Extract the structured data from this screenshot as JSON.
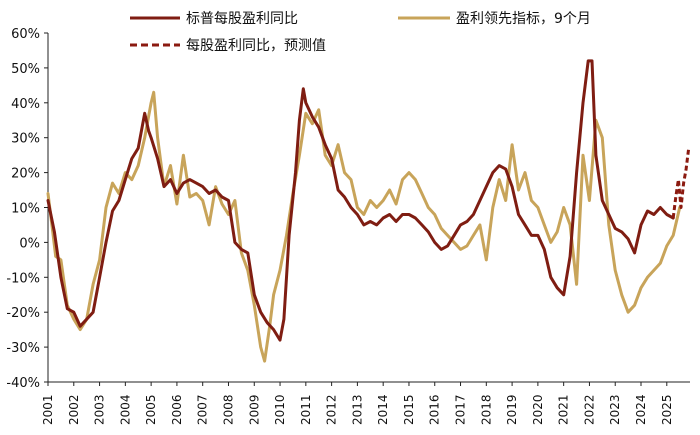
{
  "chart_data": {
    "type": "line",
    "title": "",
    "xlabel": "",
    "ylabel": "",
    "ylim": [
      -40,
      60
    ],
    "ytick_values": [
      -40,
      -30,
      -20,
      -10,
      0,
      10,
      20,
      30,
      40,
      50,
      60
    ],
    "ytick_labels": [
      "-40%",
      "-30%",
      "-20%",
      "-10%",
      "0%",
      "10%",
      "20%",
      "30%",
      "40%",
      "50%",
      "60%"
    ],
    "xlim": [
      2001,
      2025.9
    ],
    "xtick_labels": [
      "2001",
      "2002",
      "2003",
      "2004",
      "2005",
      "2006",
      "2007",
      "2008",
      "2009",
      "2010",
      "2011",
      "2012",
      "2013",
      "2014",
      "2015",
      "2016",
      "2017",
      "2018",
      "2019",
      "2020",
      "2021",
      "2022",
      "2023",
      "2024",
      "2025"
    ],
    "grid": false,
    "legend_position": "top",
    "series": [
      {
        "name": "标普每股盈利同比",
        "color": "#7f1d12",
        "style": "solid",
        "points": [
          [
            2001.0,
            12
          ],
          [
            2001.25,
            3
          ],
          [
            2001.5,
            -10
          ],
          [
            2001.75,
            -19
          ],
          [
            2002.0,
            -20
          ],
          [
            2002.25,
            -24
          ],
          [
            2002.5,
            -22
          ],
          [
            2002.75,
            -20
          ],
          [
            2003.0,
            -10
          ],
          [
            2003.25,
            0
          ],
          [
            2003.5,
            9
          ],
          [
            2003.75,
            12
          ],
          [
            2004.0,
            18
          ],
          [
            2004.25,
            24
          ],
          [
            2004.5,
            27
          ],
          [
            2004.75,
            37
          ],
          [
            2004.9,
            32
          ],
          [
            2005.0,
            30
          ],
          [
            2005.25,
            24
          ],
          [
            2005.5,
            16
          ],
          [
            2005.75,
            18
          ],
          [
            2006.0,
            14
          ],
          [
            2006.25,
            17
          ],
          [
            2006.5,
            18
          ],
          [
            2006.75,
            17
          ],
          [
            2007.0,
            16
          ],
          [
            2007.25,
            14
          ],
          [
            2007.5,
            15
          ],
          [
            2007.75,
            13
          ],
          [
            2008.0,
            12
          ],
          [
            2008.25,
            0
          ],
          [
            2008.5,
            -2
          ],
          [
            2008.75,
            -3
          ],
          [
            2009.0,
            -15
          ],
          [
            2009.25,
            -20
          ],
          [
            2009.5,
            -23
          ],
          [
            2009.75,
            -25
          ],
          [
            2010.0,
            -28
          ],
          [
            2010.15,
            -22
          ],
          [
            2010.35,
            2
          ],
          [
            2010.6,
            20
          ],
          [
            2010.75,
            35
          ],
          [
            2010.9,
            44
          ],
          [
            2011.0,
            40
          ],
          [
            2011.25,
            36
          ],
          [
            2011.5,
            33
          ],
          [
            2011.75,
            28
          ],
          [
            2012.0,
            24
          ],
          [
            2012.25,
            15
          ],
          [
            2012.5,
            13
          ],
          [
            2012.75,
            10
          ],
          [
            2013.0,
            8
          ],
          [
            2013.25,
            5
          ],
          [
            2013.5,
            6
          ],
          [
            2013.75,
            5
          ],
          [
            2014.0,
            7
          ],
          [
            2014.25,
            8
          ],
          [
            2014.5,
            6
          ],
          [
            2014.75,
            8
          ],
          [
            2015.0,
            8
          ],
          [
            2015.25,
            7
          ],
          [
            2015.5,
            5
          ],
          [
            2015.75,
            3
          ],
          [
            2016.0,
            0
          ],
          [
            2016.25,
            -2
          ],
          [
            2016.5,
            -1
          ],
          [
            2016.75,
            2
          ],
          [
            2017.0,
            5
          ],
          [
            2017.25,
            6
          ],
          [
            2017.5,
            8
          ],
          [
            2017.75,
            12
          ],
          [
            2018.0,
            16
          ],
          [
            2018.25,
            20
          ],
          [
            2018.5,
            22
          ],
          [
            2018.75,
            21
          ],
          [
            2019.0,
            16
          ],
          [
            2019.25,
            8
          ],
          [
            2019.5,
            5
          ],
          [
            2019.75,
            2
          ],
          [
            2020.0,
            2
          ],
          [
            2020.25,
            -2
          ],
          [
            2020.5,
            -10
          ],
          [
            2020.75,
            -13
          ],
          [
            2021.0,
            -15
          ],
          [
            2021.25,
            -4
          ],
          [
            2021.5,
            20
          ],
          [
            2021.75,
            40
          ],
          [
            2021.95,
            52
          ],
          [
            2022.1,
            52
          ],
          [
            2022.25,
            25
          ],
          [
            2022.5,
            12
          ],
          [
            2022.75,
            8
          ],
          [
            2023.0,
            4
          ],
          [
            2023.25,
            3
          ],
          [
            2023.5,
            1
          ],
          [
            2023.75,
            -3
          ],
          [
            2024.0,
            5
          ],
          [
            2024.25,
            9
          ],
          [
            2024.5,
            8
          ],
          [
            2024.75,
            10
          ],
          [
            2025.0,
            8
          ],
          [
            2025.25,
            7
          ]
        ]
      },
      {
        "name": "盈利领先指标，9个月",
        "color": "#c8a45a",
        "style": "solid",
        "points": [
          [
            2001.0,
            14
          ],
          [
            2001.15,
            5
          ],
          [
            2001.3,
            -4
          ],
          [
            2001.5,
            -5
          ],
          [
            2001.75,
            -18
          ],
          [
            2002.0,
            -22
          ],
          [
            2002.25,
            -25
          ],
          [
            2002.5,
            -22
          ],
          [
            2002.75,
            -12
          ],
          [
            2003.0,
            -5
          ],
          [
            2003.25,
            10
          ],
          [
            2003.5,
            17
          ],
          [
            2003.75,
            14
          ],
          [
            2004.0,
            20
          ],
          [
            2004.25,
            18
          ],
          [
            2004.5,
            22
          ],
          [
            2004.75,
            30
          ],
          [
            2005.0,
            40
          ],
          [
            2005.1,
            43
          ],
          [
            2005.25,
            30
          ],
          [
            2005.5,
            16
          ],
          [
            2005.75,
            22
          ],
          [
            2006.0,
            11
          ],
          [
            2006.25,
            25
          ],
          [
            2006.5,
            13
          ],
          [
            2006.75,
            14
          ],
          [
            2007.0,
            12
          ],
          [
            2007.25,
            5
          ],
          [
            2007.5,
            16
          ],
          [
            2007.75,
            11
          ],
          [
            2008.0,
            8
          ],
          [
            2008.25,
            12
          ],
          [
            2008.5,
            -3
          ],
          [
            2008.75,
            -8
          ],
          [
            2009.0,
            -18
          ],
          [
            2009.25,
            -30
          ],
          [
            2009.4,
            -34
          ],
          [
            2009.6,
            -24
          ],
          [
            2009.75,
            -15
          ],
          [
            2010.0,
            -8
          ],
          [
            2010.25,
            2
          ],
          [
            2010.5,
            14
          ],
          [
            2010.75,
            25
          ],
          [
            2011.0,
            37
          ],
          [
            2011.25,
            34
          ],
          [
            2011.5,
            38
          ],
          [
            2011.75,
            25
          ],
          [
            2012.0,
            22
          ],
          [
            2012.25,
            28
          ],
          [
            2012.5,
            20
          ],
          [
            2012.75,
            18
          ],
          [
            2013.0,
            10
          ],
          [
            2013.25,
            8
          ],
          [
            2013.5,
            12
          ],
          [
            2013.75,
            10
          ],
          [
            2014.0,
            12
          ],
          [
            2014.25,
            15
          ],
          [
            2014.5,
            11
          ],
          [
            2014.75,
            18
          ],
          [
            2015.0,
            20
          ],
          [
            2015.25,
            18
          ],
          [
            2015.5,
            14
          ],
          [
            2015.75,
            10
          ],
          [
            2016.0,
            8
          ],
          [
            2016.25,
            4
          ],
          [
            2016.5,
            2
          ],
          [
            2016.75,
            0
          ],
          [
            2017.0,
            -2
          ],
          [
            2017.25,
            -1
          ],
          [
            2017.5,
            2
          ],
          [
            2017.75,
            5
          ],
          [
            2018.0,
            -5
          ],
          [
            2018.25,
            10
          ],
          [
            2018.5,
            18
          ],
          [
            2018.75,
            12
          ],
          [
            2019.0,
            28
          ],
          [
            2019.25,
            15
          ],
          [
            2019.5,
            20
          ],
          [
            2019.75,
            12
          ],
          [
            2020.0,
            10
          ],
          [
            2020.25,
            5
          ],
          [
            2020.5,
            0
          ],
          [
            2020.75,
            3
          ],
          [
            2021.0,
            10
          ],
          [
            2021.25,
            5
          ],
          [
            2021.5,
            -12
          ],
          [
            2021.75,
            25
          ],
          [
            2022.0,
            12
          ],
          [
            2022.25,
            35
          ],
          [
            2022.5,
            30
          ],
          [
            2022.75,
            5
          ],
          [
            2023.0,
            -8
          ],
          [
            2023.25,
            -15
          ],
          [
            2023.5,
            -20
          ],
          [
            2023.75,
            -18
          ],
          [
            2024.0,
            -13
          ],
          [
            2024.25,
            -10
          ],
          [
            2024.5,
            -8
          ],
          [
            2024.75,
            -6
          ],
          [
            2025.0,
            -1
          ],
          [
            2025.25,
            2
          ],
          [
            2025.5,
            10
          ]
        ]
      },
      {
        "name": "每股盈利同比，预测值",
        "color": "#8b1a10",
        "style": "dashed",
        "points": [
          [
            2025.25,
            7
          ],
          [
            2025.35,
            13
          ],
          [
            2025.45,
            18
          ],
          [
            2025.55,
            10
          ],
          [
            2025.65,
            17
          ],
          [
            2025.75,
            21
          ],
          [
            2025.85,
            27
          ]
        ]
      }
    ]
  }
}
